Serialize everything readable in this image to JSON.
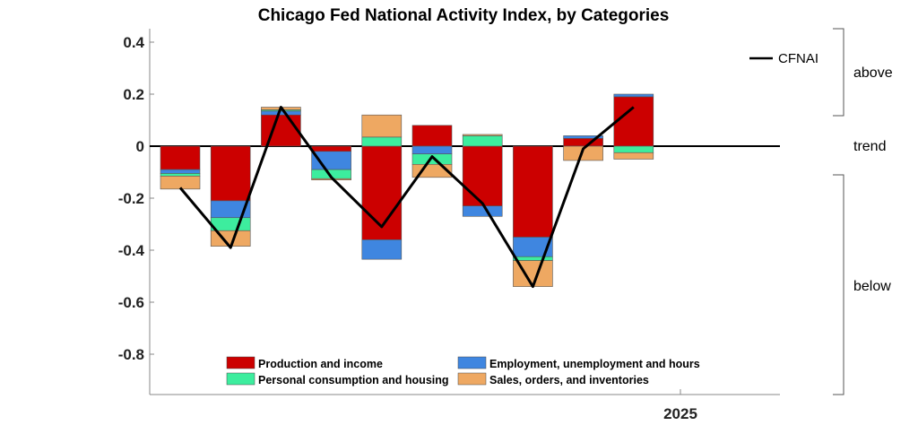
{
  "chart_data": {
    "type": "bar",
    "title": "Chicago Fed National Activity Index, by Categories",
    "xlabel": "",
    "ylabel": "",
    "ylim": [
      -0.95,
      0.45
    ],
    "yticks": [
      "0.4",
      "0.2",
      "0",
      "-0.2",
      "-0.4",
      "-0.6",
      "-0.8"
    ],
    "xtick_label": "2025",
    "grid": false,
    "stacked": true,
    "n_periods": 10,
    "series": [
      {
        "name": "Production and income",
        "color": "#cc0000",
        "values": [
          -0.09,
          -0.21,
          0.12,
          -0.02,
          -0.36,
          0.08,
          -0.23,
          -0.35,
          0.03,
          0.19
        ]
      },
      {
        "name": "Employment, unemployment and hours",
        "color": "#3f86e0",
        "values": [
          -0.015,
          -0.065,
          0.015,
          -0.07,
          -0.075,
          -0.03,
          -0.04,
          -0.075,
          0.01,
          0.01
        ]
      },
      {
        "name": "Personal consumption and housing",
        "color": "#3ded9e",
        "values": [
          -0.01,
          -0.05,
          0.005,
          -0.035,
          0.035,
          -0.04,
          0.04,
          -0.015,
          0.0,
          -0.025
        ]
      },
      {
        "name": "Sales, orders, and inventories",
        "color": "#eea862",
        "values": [
          -0.05,
          -0.06,
          0.01,
          -0.005,
          0.085,
          -0.05,
          0.005,
          -0.1,
          -0.055,
          -0.025
        ]
      }
    ],
    "line": {
      "name": "CFNAI",
      "color": "#000000",
      "values": [
        -0.16,
        -0.39,
        0.15,
        -0.12,
        -0.31,
        -0.04,
        -0.22,
        -0.54,
        -0.01,
        0.15
      ]
    },
    "legend_placement": "bottom-center",
    "line_legend_placement": "top-right",
    "side_labels": {
      "above": "above",
      "trend": "trend",
      "below": "below"
    }
  }
}
